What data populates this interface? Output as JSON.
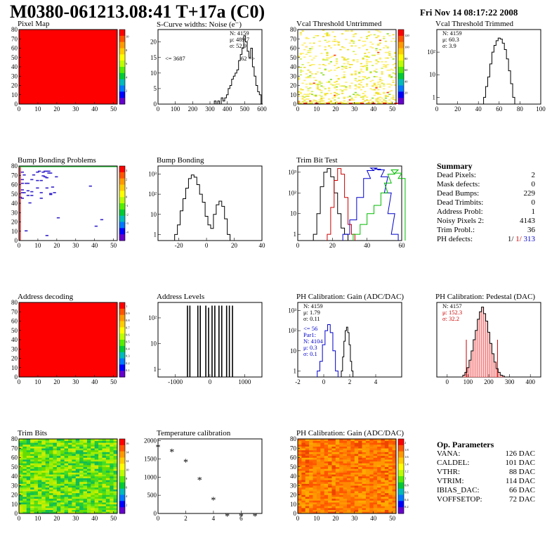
{
  "header": {
    "title": "M0380-061213.08:41 T+17a (C0)",
    "date": "Fri Nov 14 08:17:22 2008"
  },
  "colors": {
    "map_red": "#ff0000",
    "blue": "#0000cc",
    "red": "#cc0000",
    "green": "#00bb00"
  },
  "chart_data": [
    {
      "id": "pixel-map",
      "type": "heatmap",
      "title": "Pixel Map",
      "xticks": [
        "0",
        "10",
        "20",
        "30",
        "40",
        "50"
      ],
      "yticks": [
        "0",
        "10",
        "20",
        "30",
        "40",
        "50",
        "60",
        "70",
        "80"
      ],
      "palette_ticks": [
        "2",
        "4",
        "6",
        "8",
        "10"
      ],
      "fill": "uniform-red"
    },
    {
      "id": "scurve-widths",
      "type": "bar",
      "title": "S-Curve widths: Noise (e⁻)",
      "xticks": [
        "0",
        "100",
        "200",
        "300",
        "400",
        "500",
        "600"
      ],
      "yticks": [
        "0",
        "5",
        "10",
        "15",
        "20"
      ],
      "xlim": [
        0,
        600
      ],
      "ylim": [
        0,
        24
      ],
      "stats": [
        "N:  4159",
        "μ:  489.7",
        "σ:  52.9"
      ],
      "underflow_label": "<= 3687",
      "overflow_label": "62 =>",
      "x": [
        300,
        310,
        320,
        330,
        340,
        350,
        360,
        370,
        380,
        390,
        400,
        410,
        420,
        430,
        440,
        450,
        460,
        470,
        480,
        490,
        500,
        510,
        520,
        530,
        540,
        550,
        560,
        570,
        580,
        590,
        600
      ],
      "values": [
        0,
        0,
        0,
        1,
        0,
        1,
        0,
        2,
        1,
        2,
        3,
        5,
        6,
        8,
        9,
        10,
        11,
        14,
        16,
        18,
        22,
        20,
        17,
        15,
        18,
        12,
        9,
        6,
        4,
        3,
        0
      ]
    },
    {
      "id": "vcal-untrimmed",
      "type": "heatmap",
      "title": "Vcal Threshold Untrimmed",
      "xticks": [
        "0",
        "10",
        "20",
        "30",
        "40",
        "50"
      ],
      "yticks": [
        "0",
        "10",
        "20",
        "30",
        "40",
        "50",
        "60",
        "70",
        "80"
      ],
      "palette_ticks": [
        "20",
        "40",
        "60",
        "80",
        "100",
        "120"
      ],
      "fill": "scattered-yellow"
    },
    {
      "id": "vcal-trimmed",
      "type": "bar",
      "title": "Vcal Threshold Trimmed",
      "log_y": true,
      "xticks": [
        "0",
        "20",
        "40",
        "60",
        "80",
        "100"
      ],
      "yticks": [
        "1",
        "10",
        "10²"
      ],
      "xlim": [
        0,
        100
      ],
      "ylim_decades": [
        -0.3,
        3.0
      ],
      "stats": [
        "N:  4159",
        "μ:  60.3",
        "σ:  3.9"
      ],
      "x": [
        46,
        48,
        50,
        52,
        54,
        56,
        58,
        60,
        62,
        64,
        66,
        68,
        70,
        72,
        74
      ],
      "values": [
        1,
        3,
        8,
        30,
        100,
        200,
        320,
        420,
        380,
        250,
        130,
        50,
        15,
        4,
        1
      ]
    },
    {
      "id": "bump-bonding-problems",
      "type": "heatmap",
      "title": "Bump Bonding Problems",
      "xticks": [
        "0",
        "10",
        "20",
        "30",
        "40",
        "50"
      ],
      "yticks": [
        "0",
        "10",
        "20",
        "30",
        "40",
        "50",
        "60",
        "70",
        "80"
      ],
      "palette_ticks": [
        "-4",
        "-3",
        "-2",
        "-1",
        "0",
        "1",
        "2",
        "3"
      ],
      "fill": "sparse-blue"
    },
    {
      "id": "bump-bonding",
      "type": "bar",
      "title": "Bump Bonding",
      "log_y": true,
      "xticks": [
        "-20",
        "0",
        "20",
        "40"
      ],
      "yticks": [
        "1",
        "10",
        "10²",
        "10³"
      ],
      "xlim": [
        -35,
        40
      ],
      "ylim_decades": [
        -0.3,
        3.4
      ],
      "x": [
        -22,
        -20,
        -18,
        -16,
        -14,
        -12,
        -10,
        -8,
        -6,
        -4,
        -2,
        0,
        2,
        4,
        6,
        8,
        10,
        12,
        14,
        16
      ],
      "values": [
        1,
        3,
        15,
        60,
        200,
        600,
        900,
        700,
        300,
        100,
        40,
        8,
        3,
        2,
        10,
        30,
        45,
        25,
        6,
        1
      ]
    },
    {
      "id": "trim-bit-test",
      "type": "line",
      "title": "Trim Bit Test",
      "log_y": true,
      "xticks": [
        "0",
        "20",
        "40",
        "60"
      ],
      "yticks": [
        "1",
        "10",
        "10²",
        "10³"
      ],
      "xlim": [
        0,
        60
      ],
      "ylim_decades": [
        -0.3,
        3.3
      ],
      "series": [
        {
          "color": "#000000",
          "x": [
            10,
            12,
            14,
            16,
            18,
            20,
            22,
            24,
            26,
            28
          ],
          "values": [
            1,
            10,
            200,
            1000,
            1500,
            600,
            100,
            10,
            2,
            1
          ]
        },
        {
          "color": "#cc0000",
          "x": [
            18,
            20,
            22,
            24,
            26,
            28,
            30,
            32
          ],
          "values": [
            1,
            20,
            400,
            1500,
            800,
            60,
            3,
            1
          ]
        },
        {
          "color": "#0000cc",
          "x": [
            28,
            32,
            36,
            40,
            42,
            44,
            46,
            48,
            50,
            52,
            54,
            56
          ],
          "values": [
            1,
            5,
            60,
            500,
            1200,
            1600,
            1400,
            1300,
            600,
            100,
            10,
            1
          ]
        },
        {
          "color": "#00bb00",
          "x": [
            34,
            38,
            42,
            46,
            50,
            52,
            54,
            56,
            58,
            60
          ],
          "values": [
            1,
            3,
            10,
            25,
            100,
            300,
            800,
            1300,
            900,
            500
          ]
        }
      ]
    },
    {
      "id": "address-decoding",
      "type": "heatmap",
      "title": "Address decoding",
      "xticks": [
        "0",
        "10",
        "20",
        "30",
        "40",
        "50"
      ],
      "yticks": [
        "0",
        "10",
        "20",
        "30",
        "40",
        "50",
        "60",
        "70",
        "80"
      ],
      "palette_ticks": [
        "0.1",
        "0.2",
        "0.3",
        "0.4",
        "0.5",
        "0.6",
        "0.7",
        "0.8",
        "0.9",
        "1"
      ],
      "fill": "uniform-red"
    },
    {
      "id": "address-levels",
      "type": "bar",
      "title": "Address Levels",
      "log_y": true,
      "xticks": [
        "-1000",
        "0",
        "1000"
      ],
      "yticks": [
        "1",
        "10",
        "10²"
      ],
      "xlim": [
        -1500,
        1500
      ],
      "ylim_decades": [
        -0.3,
        2.6
      ],
      "x": [
        -650,
        -580,
        -350,
        -280,
        -120,
        -40,
        60,
        140,
        260,
        340,
        480,
        560,
        650
      ],
      "values": [
        300,
        300,
        300,
        300,
        300,
        250,
        300,
        300,
        300,
        300,
        300,
        300,
        300
      ]
    },
    {
      "id": "ph-gain",
      "type": "line",
      "title": "PH Calibration: Gain (ADC/DAC)",
      "log_y": true,
      "xticks": [
        "-2",
        "0",
        "2",
        "4"
      ],
      "yticks": [
        "1",
        "10",
        "10²",
        "10³"
      ],
      "xlim": [
        -2,
        6
      ],
      "ylim_decades": [
        -0.3,
        3.4
      ],
      "stats": [
        "N:  4159",
        "μ:  1.79",
        "σ:  0.11"
      ],
      "stats2": [
        "<= 56",
        "Par1:",
        "N:  4104",
        "μ:  0.3",
        "σ:  0.1"
      ],
      "series": [
        {
          "color": "#000000",
          "x": [
            1.4,
            1.5,
            1.6,
            1.7,
            1.8,
            1.9,
            2.0,
            2.1,
            2.2
          ],
          "values": [
            1,
            5,
            30,
            100,
            150,
            80,
            20,
            3,
            1
          ]
        },
        {
          "color": "#0000cc",
          "x": [
            -0.4,
            -0.2,
            0.0,
            0.2,
            0.4,
            0.6,
            0.8,
            1.0
          ],
          "values": [
            1,
            3,
            20,
            100,
            200,
            80,
            10,
            1
          ]
        }
      ]
    },
    {
      "id": "ph-pedestal",
      "type": "bar",
      "title": "PH Calibration: Pedestal (DAC)",
      "xticks": [
        "0",
        "100",
        "200",
        "300",
        "400"
      ],
      "yticks": [],
      "xlim": [
        -50,
        450
      ],
      "ylim": [
        0,
        80
      ],
      "stats": [
        "N:  4157",
        "μ:  152.3",
        "σ:  32.2"
      ],
      "x": [
        80,
        90,
        100,
        110,
        120,
        130,
        140,
        150,
        160,
        170,
        180,
        190,
        200,
        210,
        220,
        230,
        240,
        250,
        260,
        270
      ],
      "values": [
        2,
        5,
        10,
        18,
        28,
        40,
        50,
        62,
        70,
        75,
        68,
        60,
        48,
        36,
        25,
        16,
        9,
        5,
        2,
        1
      ]
    },
    {
      "id": "trim-bits",
      "type": "heatmap",
      "title": "Trim Bits",
      "xticks": [
        "0",
        "10",
        "20",
        "30",
        "40",
        "50"
      ],
      "yticks": [
        "0",
        "10",
        "20",
        "30",
        "40",
        "50",
        "60",
        "70",
        "80"
      ],
      "palette_ticks": [
        "2",
        "4",
        "6",
        "8",
        "10",
        "12",
        "14",
        "16"
      ],
      "fill": "noisy-green"
    },
    {
      "id": "temperature-calibration",
      "type": "scatter",
      "title": "Temperature calibration",
      "xticks": [
        "0",
        "2",
        "4",
        "6"
      ],
      "yticks": [
        "0",
        "500",
        "1000",
        "1500",
        "2000"
      ],
      "xlim": [
        0,
        7.5
      ],
      "ylim": [
        0,
        2050
      ],
      "x": [
        0,
        1,
        2,
        3,
        4,
        5,
        6,
        7
      ],
      "values": [
        1830,
        1700,
        1420,
        930,
        380,
        -70,
        -70,
        -70
      ]
    },
    {
      "id": "ph-gain-map",
      "type": "heatmap",
      "title": "PH Calibration: Gain (ADC/DAC)",
      "xticks": [
        "0",
        "10",
        "20",
        "30",
        "40",
        "50"
      ],
      "yticks": [
        "0",
        "10",
        "20",
        "30",
        "40",
        "50",
        "60",
        "70",
        "80"
      ],
      "palette_ticks": [
        "0.2",
        "0.4",
        "0.6",
        "0.8",
        "1",
        "1.2",
        "1.4",
        "1.6",
        "1.8",
        "2"
      ],
      "fill": "noisy-orange"
    }
  ],
  "summary": {
    "heading": "Summary",
    "rows": [
      {
        "label": "Dead Pixels:",
        "value": "2"
      },
      {
        "label": "Mask defects:",
        "value": "0"
      },
      {
        "label": "Dead Bumps:",
        "value": "229"
      },
      {
        "label": "Dead Trimbits:",
        "value": "0"
      },
      {
        "label": "Address Probl:",
        "value": "1"
      },
      {
        "label": "Noisy Pixels 2:",
        "value": "4143"
      },
      {
        "label": "Trim Probl.:",
        "value": "36"
      }
    ],
    "ph": {
      "label": "PH defects:",
      "v1": "1/",
      "v2": "1/",
      "v3": "313"
    }
  },
  "op_params": {
    "heading": "Op. Parameters",
    "rows": [
      {
        "label": "VANA:",
        "value": "126 DAC"
      },
      {
        "label": "CALDEL:",
        "value": "101 DAC"
      },
      {
        "label": "VTHR:",
        "value": "88 DAC"
      },
      {
        "label": "VTRIM:",
        "value": "114 DAC"
      },
      {
        "label": "IBIAS_DAC:",
        "value": "66 DAC"
      },
      {
        "label": "VOFFSETOP:",
        "value": "72 DAC"
      }
    ]
  }
}
